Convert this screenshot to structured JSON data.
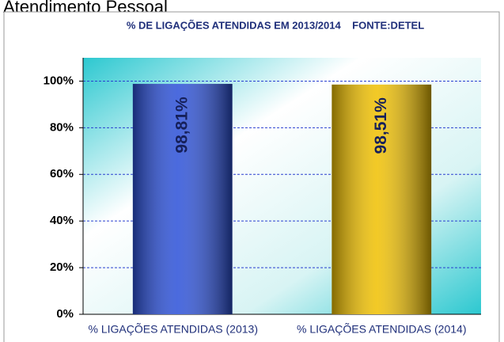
{
  "page_title": "Atendimento Pessoal",
  "chart_data": {
    "type": "bar",
    "title": "% DE LIGAÇÕES ATENDIDAS EM 2013/2014    FONTE:DETEL",
    "categories": [
      "% LIGAÇÕES ATENDIDAS (2013)",
      "% LIGAÇÕES ATENDIDAS (2014)"
    ],
    "values": [
      98.81,
      98.51
    ],
    "value_labels": [
      "98,81%",
      "98,51%"
    ],
    "colors": [
      "#2b50d8",
      "#f0c000"
    ],
    "ylim": [
      0,
      110
    ],
    "yticks": [
      {
        "value": 0,
        "label": "0%"
      },
      {
        "value": 20,
        "label": "20%"
      },
      {
        "value": 40,
        "label": "40%"
      },
      {
        "value": 60,
        "label": "60%"
      },
      {
        "value": 80,
        "label": "80%"
      },
      {
        "value": 100,
        "label": "100%"
      }
    ],
    "grid": true
  }
}
